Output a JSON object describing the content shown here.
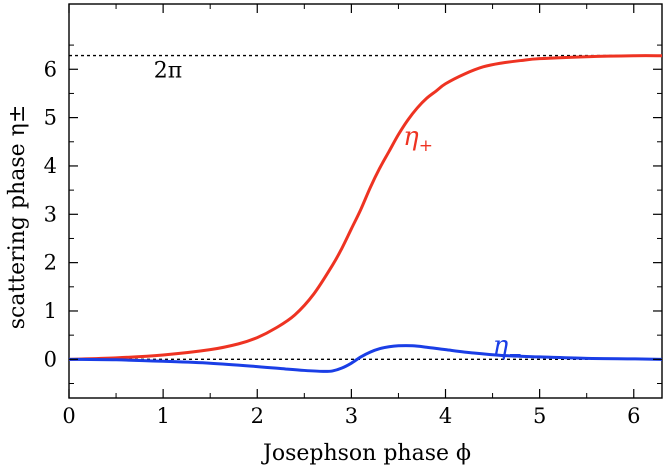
{
  "chart_data": {
    "type": "line",
    "title": "",
    "xlabel": "Josephson phase ϕ",
    "ylabel": "scattering phase η±",
    "xlim": [
      0,
      6.3
    ],
    "ylim": [
      -0.8,
      7.35
    ],
    "xticks": [
      0,
      1,
      2,
      3,
      4,
      5,
      6
    ],
    "yticks": [
      0,
      1,
      2,
      3,
      4,
      5,
      6
    ],
    "xtick_labels": [
      "0",
      "1",
      "2",
      "3",
      "4",
      "5",
      "6"
    ],
    "ytick_labels": [
      "0",
      "1",
      "2",
      "3",
      "4",
      "5",
      "6"
    ],
    "grid": false,
    "legend": "none",
    "series": [
      {
        "name": "η+",
        "color": "#ee3322",
        "x": [
          0,
          0.5,
          1.0,
          1.5,
          1.8,
          2.0,
          2.2,
          2.4,
          2.6,
          2.8,
          2.9,
          3.0,
          3.1,
          3.2,
          3.3,
          3.4,
          3.5,
          3.6,
          3.7,
          3.8,
          3.9,
          4.0,
          4.2,
          4.4,
          4.6,
          4.8,
          5.0,
          5.5,
          6.0,
          6.3
        ],
        "y": [
          0.0,
          0.03,
          0.09,
          0.2,
          0.32,
          0.45,
          0.65,
          0.92,
          1.35,
          1.95,
          2.3,
          2.7,
          3.1,
          3.55,
          3.95,
          4.3,
          4.65,
          4.95,
          5.2,
          5.4,
          5.55,
          5.7,
          5.9,
          6.05,
          6.13,
          6.18,
          6.22,
          6.26,
          6.28,
          6.28
        ]
      },
      {
        "name": "η−",
        "color": "#1a3ee6",
        "x": [
          0,
          0.5,
          1.0,
          1.5,
          2.0,
          2.3,
          2.5,
          2.7,
          2.8,
          2.9,
          3.0,
          3.1,
          3.2,
          3.3,
          3.4,
          3.5,
          3.65,
          3.8,
          4.0,
          4.3,
          4.6,
          5.0,
          5.5,
          6.0,
          6.3
        ],
        "y": [
          0.0,
          -0.01,
          -0.04,
          -0.08,
          -0.15,
          -0.2,
          -0.23,
          -0.25,
          -0.24,
          -0.18,
          -0.08,
          0.05,
          0.15,
          0.22,
          0.26,
          0.28,
          0.28,
          0.25,
          0.2,
          0.13,
          0.08,
          0.05,
          0.02,
          0.01,
          0.0
        ]
      }
    ],
    "reference_lines": [
      {
        "y": 0,
        "style": "dotted",
        "color": "#000000"
      },
      {
        "y": 6.2832,
        "style": "dotted",
        "color": "#000000"
      }
    ],
    "annotations": [
      {
        "text": "2π",
        "x": 0.9,
        "y": 6.0,
        "color": "#000000"
      },
      {
        "text": "η",
        "sub": "+",
        "x": 3.55,
        "y": 4.6,
        "color": "#ee3322"
      },
      {
        "text": "η",
        "sub": "−",
        "x": 4.5,
        "y": 0.28,
        "color": "#1a3ee6"
      }
    ]
  }
}
